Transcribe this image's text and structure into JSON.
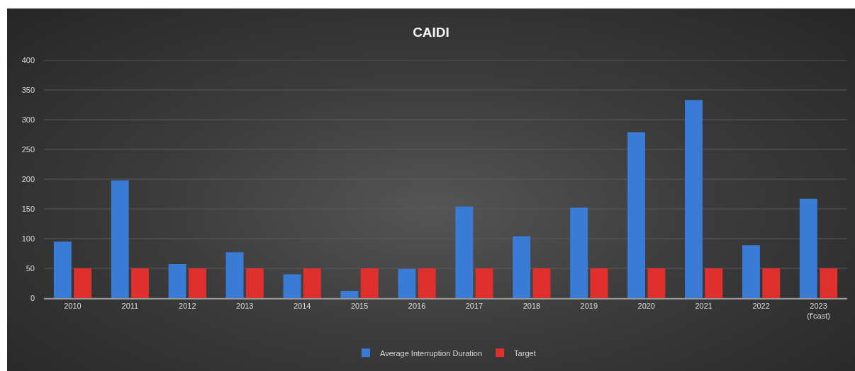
{
  "chart_data": {
    "type": "bar",
    "title": "CAIDI",
    "categories": [
      "2010",
      "2011",
      "2012",
      "2013",
      "2014",
      "2015",
      "2016",
      "2017",
      "2018",
      "2019",
      "2020",
      "2021",
      "2022",
      "2023\n(f'cast)"
    ],
    "series": [
      {
        "name": "Average Interruption Duration",
        "color": "#3a7bd5",
        "values": [
          95,
          198,
          57,
          77,
          40,
          12,
          49,
          154,
          104,
          152,
          279,
          333,
          89,
          167
        ]
      },
      {
        "name": "Target",
        "color": "#e0302e",
        "values": [
          50,
          50,
          50,
          50,
          50,
          50,
          50,
          50,
          50,
          50,
          50,
          50,
          50,
          50
        ]
      }
    ],
    "ylim": [
      0,
      400
    ],
    "yticks": [
      0,
      50,
      100,
      150,
      200,
      250,
      300,
      350,
      400
    ],
    "grid": "y",
    "legend": "bottom"
  }
}
